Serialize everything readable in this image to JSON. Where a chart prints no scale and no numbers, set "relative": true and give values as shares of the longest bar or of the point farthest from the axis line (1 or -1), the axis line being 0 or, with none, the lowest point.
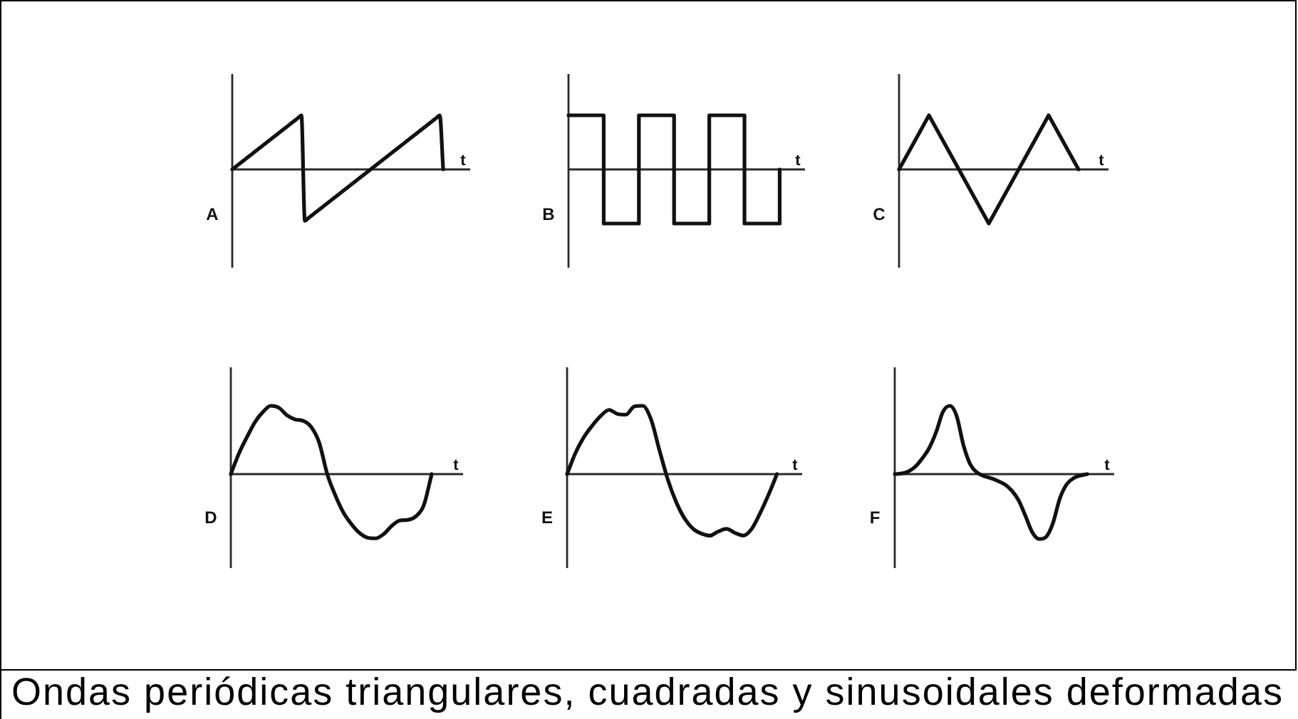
{
  "chart_data": [
    {
      "type": "line",
      "xlabel": "t",
      "ylabel": "A",
      "relative": true,
      "marker": "none",
      "color": "#111111",
      "categories": [
        null,
        null,
        null,
        null,
        null,
        null,
        null,
        null,
        null,
        null,
        null,
        null,
        null,
        null,
        null,
        null,
        null,
        null,
        null,
        null,
        null,
        null,
        null,
        null,
        null,
        null,
        null,
        null,
        null,
        null,
        null,
        null,
        null,
        null,
        null,
        null,
        null,
        null,
        null,
        null,
        null,
        null,
        null,
        null,
        null,
        null,
        null,
        null,
        null,
        null,
        null,
        null,
        null,
        null,
        null,
        null,
        null,
        null,
        null,
        null,
        null,
        null
      ],
      "values": [
        0,
        0.05,
        0.1,
        0.15,
        0.2,
        0.25,
        0.3,
        0.35,
        0.4,
        0.45,
        0.5,
        0.55,
        0.6,
        0.65,
        0.7,
        0.75,
        0.8,
        0.85,
        0.9,
        0.95,
        1,
        -0.95,
        -0.9,
        -0.85,
        -0.8,
        -0.75,
        -0.7,
        -0.65,
        -0.6,
        -0.55,
        -0.5,
        -0.45,
        -0.4,
        -0.35,
        -0.3,
        -0.25,
        -0.2,
        -0.15,
        -0.1,
        -0.05,
        0,
        0.05,
        0.1,
        0.15,
        0.2,
        0.25,
        0.3,
        0.35,
        0.4,
        0.45,
        0.5,
        0.55,
        0.6,
        0.65,
        0.7,
        0.75,
        0.8,
        0.85,
        0.9,
        0.95,
        1,
        0
      ]
    },
    {
      "type": "step",
      "xlabel": "t",
      "ylabel": "B",
      "relative": true,
      "marker": "none",
      "color": "#111111",
      "categories": [
        null,
        null,
        null,
        null,
        null,
        null,
        null
      ],
      "values": [
        1,
        -1,
        1,
        -1,
        1,
        -1,
        0
      ]
    },
    {
      "type": "line",
      "xlabel": "t",
      "ylabel": "C",
      "relative": true,
      "marker": "none",
      "color": "#111111",
      "categories": [
        null,
        null,
        null,
        null,
        null,
        null,
        null
      ],
      "values": [
        0,
        1,
        0,
        -1,
        0,
        1,
        0
      ]
    },
    {
      "type": "line",
      "xlabel": "t",
      "ylabel": "D",
      "relative": true,
      "marker": "none",
      "color": "#111111",
      "categories": [
        null,
        null,
        null,
        null,
        null,
        null,
        null,
        null,
        null,
        null,
        null,
        null,
        null,
        null,
        null,
        null,
        null,
        null,
        null,
        null,
        null,
        null,
        null,
        null,
        null,
        null
      ],
      "values": [
        0,
        0.3,
        0.54,
        0.76,
        0.91,
        1,
        0.97,
        0.86,
        0.8,
        0.78,
        0.69,
        0.46,
        0,
        -0.31,
        -0.56,
        -0.73,
        -0.86,
        -0.93,
        -0.94,
        -0.88,
        -0.76,
        -0.68,
        -0.67,
        -0.62,
        -0.46,
        0
      ]
    },
    {
      "type": "line",
      "xlabel": "t",
      "ylabel": "E",
      "relative": true,
      "marker": "none",
      "color": "#111111",
      "categories": [
        null,
        null,
        null,
        null,
        null,
        null,
        null,
        null,
        null,
        null,
        null,
        null,
        null,
        null,
        null,
        null,
        null,
        null,
        null,
        null,
        null,
        null,
        null,
        null,
        null,
        null
      ],
      "values": [
        0,
        0.31,
        0.54,
        0.71,
        0.85,
        0.94,
        0.88,
        0.87,
        0.99,
        1,
        0.8,
        0.35,
        -0.08,
        -0.41,
        -0.65,
        -0.8,
        -0.87,
        -0.9,
        -0.84,
        -0.8,
        -0.86,
        -0.9,
        -0.8,
        -0.57,
        -0.3,
        0
      ]
    },
    {
      "type": "line",
      "xlabel": "t",
      "ylabel": "F",
      "relative": true,
      "marker": "none",
      "color": "#111111",
      "categories": [
        null,
        null,
        null,
        null,
        null,
        null,
        null,
        null,
        null,
        null,
        null,
        null,
        null,
        null,
        null,
        null,
        null,
        null,
        null,
        null,
        null,
        null,
        null,
        null,
        null,
        null,
        null,
        null,
        null
      ],
      "values": [
        0,
        0.01,
        0.04,
        0.11,
        0.23,
        0.38,
        0.61,
        0.91,
        1,
        0.85,
        0.42,
        0.14,
        0.02,
        -0.03,
        -0.06,
        -0.1,
        -0.15,
        -0.24,
        -0.38,
        -0.61,
        -0.85,
        -0.95,
        -0.92,
        -0.72,
        -0.36,
        -0.15,
        -0.06,
        -0.02,
        0
      ],
      "annotations": [
        "Ondas periódicas triangulares, cuadradas y sinusoidales deformadas"
      ]
    }
  ]
}
